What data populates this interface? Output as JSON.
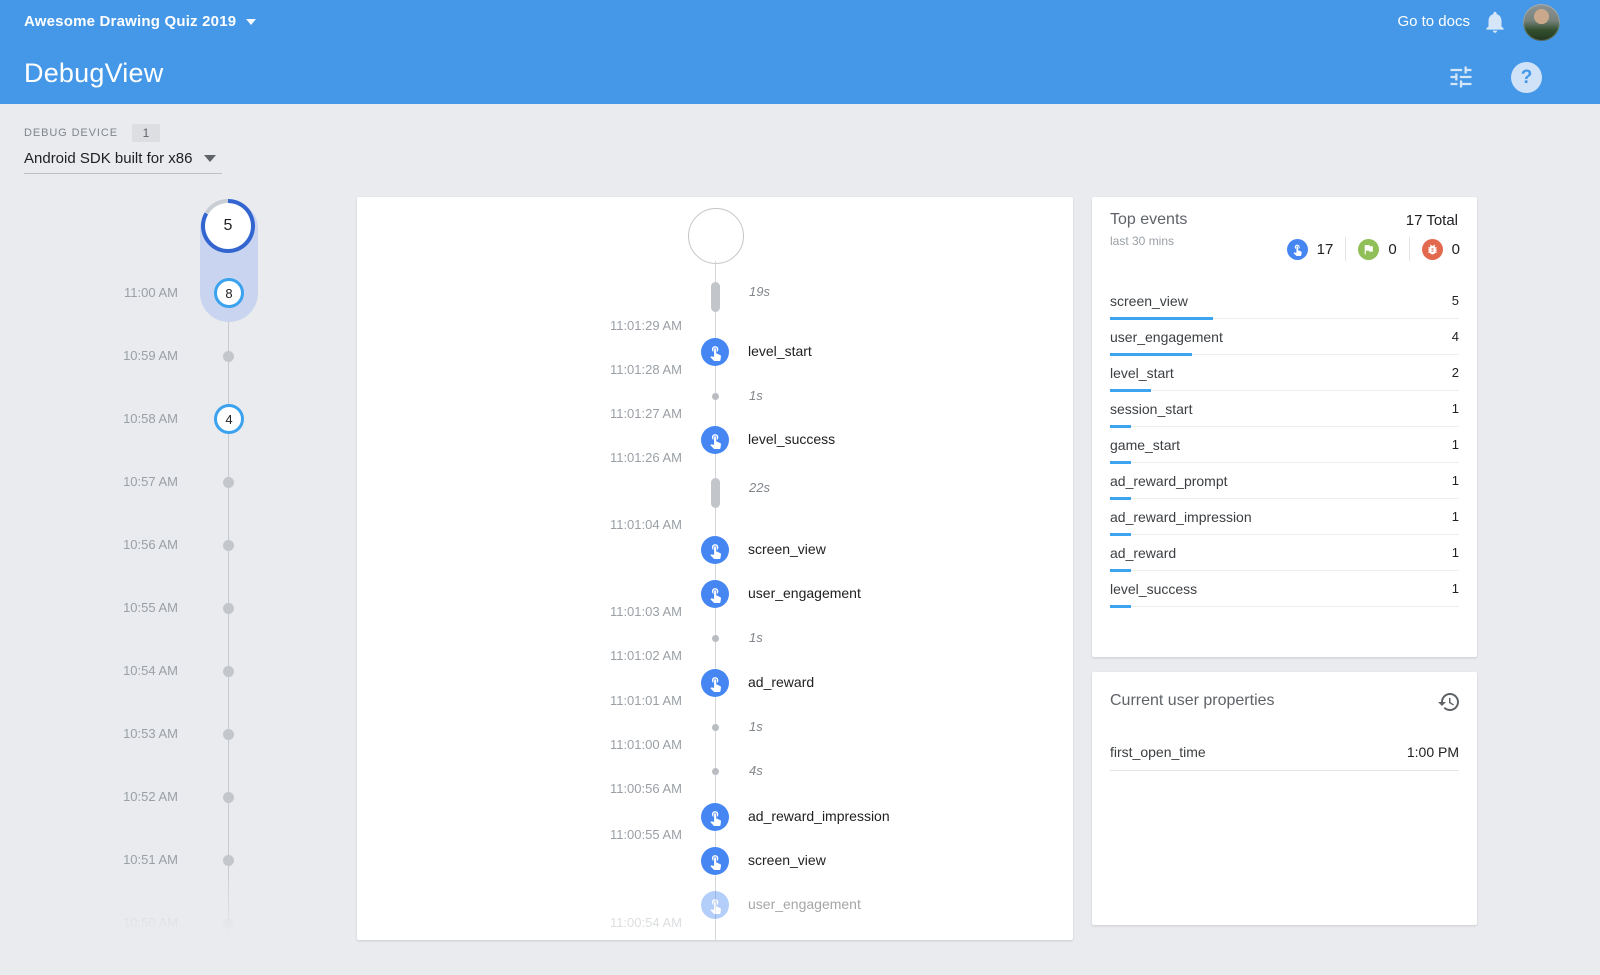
{
  "header": {
    "app_selector": "Awesome Drawing Quiz 2019",
    "go_to_docs": "Go to docs",
    "page_title": "DebugView",
    "help_glyph": "?"
  },
  "device": {
    "label": "DEBUG DEVICE",
    "count": "1",
    "selected": "Android SDK built for x86"
  },
  "minute_timeline": {
    "current_bubble": "5",
    "rows": [
      {
        "time": "11:00 AM",
        "marker": "count",
        "count": "8"
      },
      {
        "time": "10:59 AM",
        "marker": "dot"
      },
      {
        "time": "10:58 AM",
        "marker": "count",
        "count": "4"
      },
      {
        "time": "10:57 AM",
        "marker": "dot"
      },
      {
        "time": "10:56 AM",
        "marker": "dot"
      },
      {
        "time": "10:55 AM",
        "marker": "dot"
      },
      {
        "time": "10:54 AM",
        "marker": "dot"
      },
      {
        "time": "10:53 AM",
        "marker": "dot"
      },
      {
        "time": "10:52 AM",
        "marker": "dot"
      },
      {
        "time": "10:51 AM",
        "marker": "dot"
      },
      {
        "time": "10:50 AM",
        "marker": "dot",
        "faded": true
      }
    ]
  },
  "stream": {
    "items": [
      {
        "kind": "capsule",
        "duration": "19s"
      },
      {
        "kind": "event",
        "label": "level_start",
        "time_above": "11:01:29 AM",
        "time_below": "11:01:28 AM"
      },
      {
        "kind": "tick",
        "duration": "1s",
        "time_below": "11:01:27 AM"
      },
      {
        "kind": "event",
        "label": "level_success",
        "time_below": "11:01:26 AM"
      },
      {
        "kind": "capsule",
        "duration": "22s",
        "time_below": "11:01:04 AM"
      },
      {
        "kind": "event",
        "label": "screen_view"
      },
      {
        "kind": "event",
        "label": "user_engagement",
        "time_below": "11:01:03 AM"
      },
      {
        "kind": "tick",
        "duration": "1s",
        "time_below": "11:01:02 AM"
      },
      {
        "kind": "event",
        "label": "ad_reward",
        "time_below": "11:01:01 AM"
      },
      {
        "kind": "tick",
        "duration": "1s",
        "time_below": "11:01:00 AM"
      },
      {
        "kind": "tick",
        "duration": "4s",
        "time_below": "11:00:56 AM"
      },
      {
        "kind": "event",
        "label": "ad_reward_impression",
        "time_below": "11:00:55 AM"
      },
      {
        "kind": "event",
        "label": "screen_view"
      },
      {
        "kind": "event",
        "label": "user_engagement",
        "faded": true,
        "time_below": "11:00:54 AM"
      }
    ]
  },
  "top_events": {
    "title": "Top events",
    "subtitle": "last 30 mins",
    "total": "17 Total",
    "counters": [
      {
        "icon": "touch-icon",
        "value": "17"
      },
      {
        "icon": "flag-icon",
        "value": "0"
      },
      {
        "icon": "bug-icon",
        "value": "0"
      }
    ],
    "rows": [
      {
        "name": "screen_view",
        "count": 5
      },
      {
        "name": "user_engagement",
        "count": 4
      },
      {
        "name": "level_start",
        "count": 2
      },
      {
        "name": "session_start",
        "count": 1
      },
      {
        "name": "game_start",
        "count": 1
      },
      {
        "name": "ad_reward_prompt",
        "count": 1
      },
      {
        "name": "ad_reward_impression",
        "count": 1
      },
      {
        "name": "ad_reward",
        "count": 1
      },
      {
        "name": "level_success",
        "count": 1
      }
    ]
  },
  "user_properties": {
    "title": "Current user properties",
    "rows": [
      {
        "name": "first_open_time",
        "value": "1:00 PM"
      }
    ]
  },
  "colors": {
    "header_blue": "#4498e7",
    "event_icon_blue": "#4586f3",
    "spinner_blue": "#3265d0",
    "minute_ring_blue": "#3aa2ee",
    "bar_blue": "#3da5ef",
    "flag_green": "#8fbf56",
    "bug_orange": "#e2694e",
    "pill_lavender": "#c9d5f0"
  }
}
